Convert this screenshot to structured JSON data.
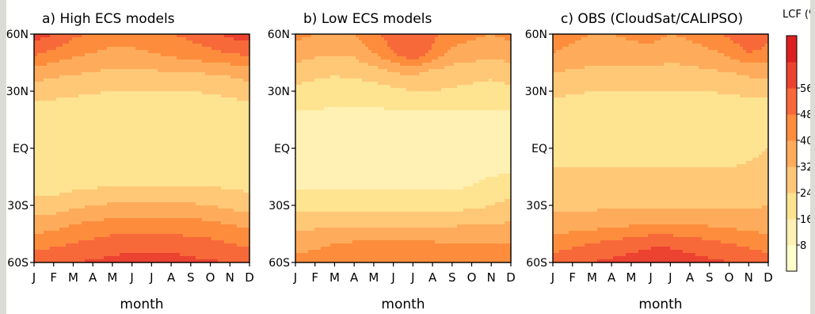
{
  "chart_data": [
    {
      "type": "heatmap",
      "title": "a) High ECS models",
      "xlabel": "month",
      "x_ticks": [
        "J",
        "F",
        "M",
        "A",
        "M",
        "J",
        "J",
        "A",
        "S",
        "O",
        "N",
        "D"
      ],
      "y_ticks": [
        "60N",
        "30N",
        "EQ",
        "30S",
        "60S"
      ],
      "ylim": [
        -60,
        60
      ],
      "latitudes": [
        60,
        50,
        40,
        30,
        20,
        10,
        0,
        -10,
        -20,
        -30,
        -40,
        -50,
        -60
      ],
      "values": [
        [
          60,
          56,
          50,
          46,
          44,
          44,
          46,
          48,
          50,
          54,
          58,
          60
        ],
        [
          50,
          46,
          42,
          40,
          38,
          38,
          40,
          42,
          44,
          46,
          48,
          50
        ],
        [
          36,
          34,
          33,
          32,
          30,
          30,
          31,
          32,
          32,
          33,
          34,
          36
        ],
        [
          28,
          27,
          26,
          25,
          24,
          24,
          24,
          24,
          24,
          25,
          26,
          28
        ],
        [
          20,
          20,
          19,
          18,
          18,
          18,
          18,
          18,
          18,
          19,
          20,
          20
        ],
        [
          16,
          16,
          16,
          16,
          16,
          16,
          16,
          16,
          16,
          16,
          16,
          16
        ],
        [
          16,
          16,
          16,
          16,
          17,
          18,
          18,
          18,
          18,
          18,
          17,
          16
        ],
        [
          16,
          16,
          18,
          20,
          22,
          22,
          22,
          22,
          22,
          22,
          21,
          18
        ],
        [
          20,
          20,
          22,
          23,
          24,
          24,
          24,
          24,
          24,
          24,
          23,
          22
        ],
        [
          28,
          28,
          30,
          32,
          33,
          33,
          33,
          33,
          33,
          32,
          30,
          28
        ],
        [
          36,
          37,
          40,
          42,
          43,
          44,
          44,
          44,
          43,
          42,
          40,
          38
        ],
        [
          44,
          46,
          48,
          50,
          52,
          52,
          52,
          52,
          51,
          50,
          48,
          46
        ],
        [
          54,
          55,
          56,
          57,
          58,
          60,
          60,
          60,
          58,
          57,
          56,
          55
        ]
      ]
    },
    {
      "type": "heatmap",
      "title": "b) Low ECS models",
      "xlabel": "month",
      "x_ticks": [
        "J",
        "F",
        "M",
        "A",
        "M",
        "J",
        "J",
        "A",
        "S",
        "O",
        "N",
        "D"
      ],
      "y_ticks": [
        "60N",
        "30N",
        "EQ",
        "30S",
        "60S"
      ],
      "ylim": [
        -60,
        60
      ],
      "latitudes": [
        60,
        50,
        40,
        30,
        20,
        10,
        0,
        -10,
        -20,
        -30,
        -40,
        -50,
        -60
      ],
      "values": [
        [
          42,
          40,
          38,
          40,
          46,
          52,
          54,
          50,
          44,
          42,
          40,
          42
        ],
        [
          36,
          34,
          33,
          34,
          40,
          48,
          56,
          46,
          38,
          36,
          34,
          36
        ],
        [
          28,
          26,
          25,
          26,
          28,
          32,
          34,
          30,
          28,
          27,
          26,
          28
        ],
        [
          22,
          21,
          20,
          20,
          20,
          22,
          24,
          24,
          23,
          22,
          21,
          22
        ],
        [
          16,
          16,
          15,
          15,
          15,
          16,
          16,
          16,
          16,
          16,
          16,
          16
        ],
        [
          13,
          13,
          13,
          13,
          13,
          13,
          13,
          13,
          13,
          13,
          13,
          13
        ],
        [
          13,
          13,
          13,
          13,
          13,
          13,
          13,
          13,
          13,
          13,
          13,
          13
        ],
        [
          14,
          14,
          14,
          14,
          14,
          14,
          14,
          14,
          14,
          14,
          14,
          14
        ],
        [
          15,
          15,
          15,
          15,
          15,
          15,
          15,
          15,
          15,
          16,
          18,
          20
        ],
        [
          20,
          20,
          20,
          20,
          20,
          20,
          20,
          20,
          21,
          22,
          24,
          26
        ],
        [
          30,
          30,
          30,
          30,
          30,
          30,
          30,
          30,
          31,
          32,
          32,
          33
        ],
        [
          36,
          38,
          40,
          41,
          41,
          41,
          41,
          41,
          40,
          40,
          40,
          40
        ],
        [
          44,
          44,
          44,
          44,
          44,
          44,
          44,
          44,
          44,
          44,
          44,
          46
        ]
      ]
    },
    {
      "type": "heatmap",
      "title": "c) OBS (CloudSat/CALIPSO)",
      "xlabel": "month",
      "x_ticks": [
        "J",
        "F",
        "M",
        "A",
        "M",
        "J",
        "J",
        "A",
        "S",
        "O",
        "N",
        "D"
      ],
      "y_ticks": [
        "60N",
        "30N",
        "EQ",
        "30S",
        "60S"
      ],
      "ylim": [
        -60,
        60
      ],
      "latitudes": [
        60,
        50,
        40,
        30,
        20,
        10,
        0,
        -10,
        -20,
        -30,
        -40,
        -50,
        -60
      ],
      "values": [
        [
          44,
          42,
          40,
          40,
          42,
          44,
          40,
          42,
          46,
          50,
          54,
          50
        ],
        [
          40,
          38,
          36,
          36,
          36,
          36,
          34,
          36,
          38,
          42,
          48,
          46
        ],
        [
          32,
          31,
          30,
          30,
          30,
          30,
          30,
          30,
          31,
          32,
          34,
          34
        ],
        [
          26,
          25,
          24,
          24,
          24,
          24,
          24,
          24,
          24,
          25,
          26,
          26
        ],
        [
          20,
          20,
          19,
          19,
          19,
          19,
          19,
          19,
          19,
          19,
          20,
          20
        ],
        [
          18,
          18,
          17,
          18,
          20,
          20,
          20,
          18,
          17,
          17,
          18,
          18
        ],
        [
          16,
          16,
          16,
          16,
          17,
          18,
          18,
          18,
          18,
          20,
          22,
          24
        ],
        [
          24,
          24,
          24,
          24,
          24,
          24,
          24,
          24,
          24,
          24,
          25,
          26
        ],
        [
          26,
          26,
          26,
          26,
          27,
          27,
          27,
          27,
          27,
          28,
          29,
          30
        ],
        [
          30,
          30,
          30,
          31,
          31,
          31,
          31,
          31,
          31,
          31,
          31,
          32
        ],
        [
          36,
          36,
          37,
          38,
          39,
          40,
          40,
          40,
          39,
          38,
          37,
          36
        ],
        [
          44,
          46,
          48,
          50,
          52,
          54,
          54,
          52,
          50,
          48,
          46,
          44
        ],
        [
          52,
          54,
          56,
          58,
          60,
          62,
          62,
          60,
          58,
          56,
          54,
          52
        ]
      ]
    }
  ],
  "colorbar": {
    "title": "LCF (%",
    "ticks": [
      "8",
      "16",
      "24",
      "32",
      "40",
      "48",
      "56"
    ],
    "levels": [
      0,
      8,
      16,
      24,
      32,
      40,
      48,
      56,
      64
    ],
    "colors": [
      "#ffffcc",
      "#fff0b3",
      "#fee391",
      "#fec877",
      "#feac5c",
      "#fd8d3c",
      "#f8693a",
      "#ec4230",
      "#dc2020"
    ]
  }
}
